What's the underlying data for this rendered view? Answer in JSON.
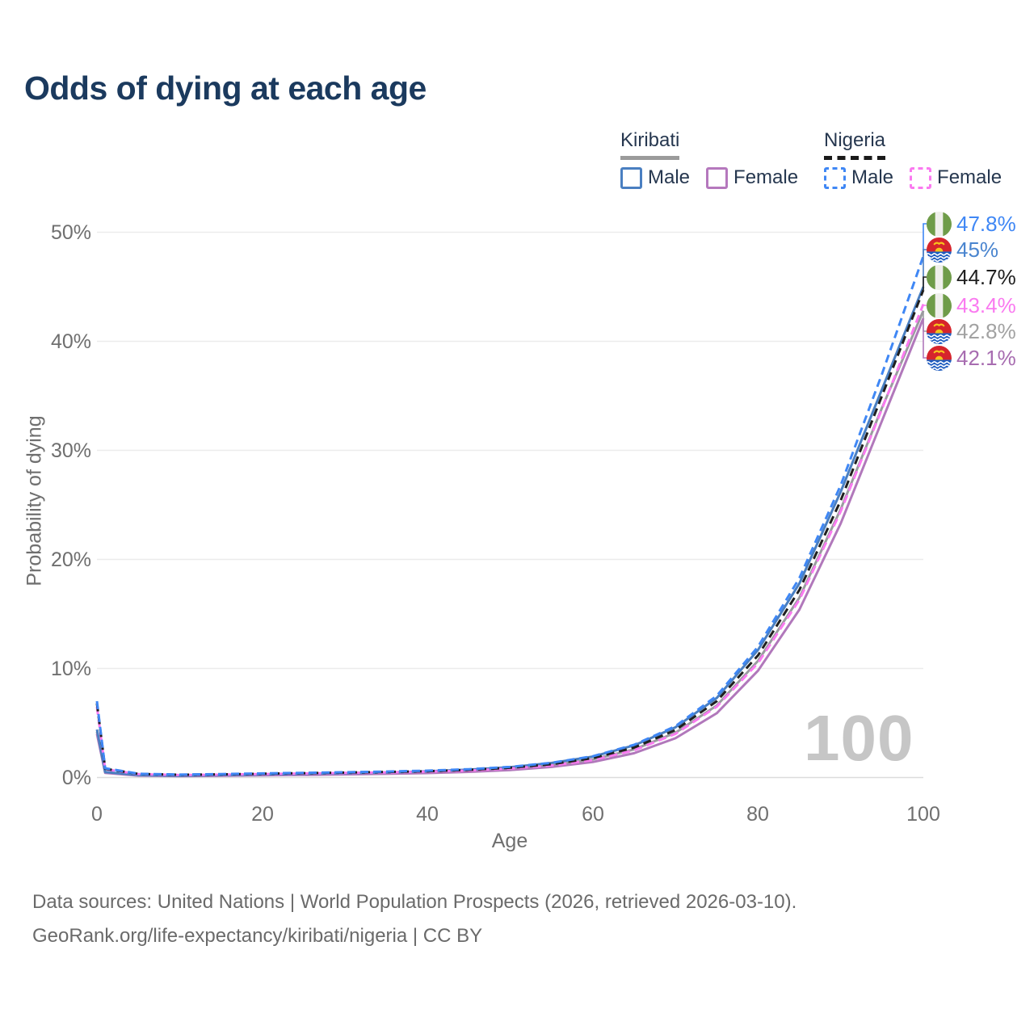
{
  "title": "Odds of dying at each age",
  "watermark_age": "100",
  "legend": {
    "groups": [
      {
        "country": "Kiribati",
        "underline_style": "solid",
        "underline_color": "#9b9b9b",
        "items": [
          {
            "label": "Male",
            "color": "#4a7fc1",
            "box_style": "solid"
          },
          {
            "label": "Female",
            "color": "#b578bd",
            "box_style": "solid"
          }
        ]
      },
      {
        "country": "Nigeria",
        "underline_style": "dashed",
        "underline_color": "#1a1a1a",
        "items": [
          {
            "label": "Male",
            "color": "#3f87f5",
            "box_style": "dashed"
          },
          {
            "label": "Female",
            "color": "#fa7af0",
            "box_style": "dashed"
          }
        ]
      }
    ]
  },
  "chart_data": {
    "type": "line",
    "title": "Odds of dying at each age",
    "xlabel": "Age",
    "ylabel": "Probability of dying",
    "xlim": [
      0,
      100
    ],
    "ylim_percent": [
      0,
      50
    ],
    "x_ticks": [
      0,
      20,
      40,
      60,
      80,
      100
    ],
    "y_tick_labels": [
      "0%",
      "10%",
      "20%",
      "30%",
      "40%",
      "50%"
    ],
    "grid": "horizontal",
    "ages": [
      0,
      1,
      5,
      10,
      15,
      20,
      25,
      30,
      35,
      40,
      45,
      50,
      55,
      60,
      65,
      70,
      75,
      80,
      85,
      90,
      95,
      100
    ],
    "series": [
      {
        "name": "kiribati-both",
        "country": "kiribati",
        "sex": "both",
        "line": "solid",
        "color": "#9b9ba0",
        "label_color": "#a2a2a2",
        "end_label": "42.8%",
        "values": [
          4.2,
          0.46,
          0.2,
          0.15,
          0.19,
          0.24,
          0.29,
          0.34,
          0.4,
          0.48,
          0.61,
          0.81,
          1.13,
          1.66,
          2.58,
          4.1,
          6.6,
          10.7,
          16.5,
          24.6,
          33.9,
          42.8
        ]
      },
      {
        "name": "kiribati-female",
        "country": "kiribati",
        "sex": "female",
        "line": "solid",
        "color": "#b178bb",
        "label_color": "#a76cb0",
        "end_label": "42.1%",
        "values": [
          4.0,
          0.42,
          0.18,
          0.13,
          0.16,
          0.2,
          0.24,
          0.29,
          0.34,
          0.41,
          0.52,
          0.69,
          0.97,
          1.42,
          2.23,
          3.6,
          5.9,
          9.8,
          15.4,
          23.3,
          32.7,
          42.1
        ]
      },
      {
        "name": "kiribati-male",
        "country": "kiribati",
        "sex": "male",
        "line": "solid",
        "color": "#4a7fc1",
        "label_color": "#4a85cf",
        "end_label": "45%",
        "values": [
          4.4,
          0.5,
          0.22,
          0.17,
          0.22,
          0.28,
          0.34,
          0.4,
          0.47,
          0.57,
          0.72,
          0.95,
          1.33,
          1.92,
          2.95,
          4.6,
          7.3,
          11.7,
          17.8,
          26.2,
          35.6,
          45.0
        ]
      },
      {
        "name": "nigeria-female",
        "country": "nigeria",
        "sex": "female",
        "line": "dashed",
        "color": "#fa7af0",
        "label_color": "#fa7af0",
        "end_label": "43.4%",
        "values": [
          6.5,
          0.76,
          0.31,
          0.23,
          0.27,
          0.32,
          0.37,
          0.42,
          0.47,
          0.54,
          0.64,
          0.82,
          1.1,
          1.6,
          2.5,
          4.0,
          6.5,
          10.5,
          16.3,
          24.4,
          33.8,
          43.4
        ]
      },
      {
        "name": "nigeria-both",
        "country": "nigeria",
        "sex": "both",
        "line": "dashed",
        "color": "#1f1f1f",
        "label_color": "#1f1f1f",
        "end_label": "44.7%",
        "values": [
          6.8,
          0.8,
          0.33,
          0.25,
          0.29,
          0.35,
          0.4,
          0.45,
          0.51,
          0.58,
          0.7,
          0.9,
          1.22,
          1.78,
          2.75,
          4.35,
          7.0,
          11.2,
          17.2,
          25.4,
          35.0,
          44.7
        ]
      },
      {
        "name": "nigeria-male",
        "country": "nigeria",
        "sex": "male",
        "line": "dashed",
        "color": "#3f87f5",
        "label_color": "#3f87f5",
        "end_label": "47.8%",
        "values": [
          7.0,
          0.85,
          0.35,
          0.27,
          0.32,
          0.38,
          0.43,
          0.48,
          0.55,
          0.63,
          0.76,
          0.98,
          1.35,
          1.95,
          3.0,
          4.7,
          7.5,
          12.0,
          18.3,
          26.8,
          37.0,
          47.8
        ]
      }
    ],
    "flag_colors": {
      "nigeria_green": "#6f9c49",
      "nigeria_white": "#efefeb",
      "kiribati_red": "#d6242c",
      "kiribati_blue": "#1d5bbf",
      "kiribati_yellow": "#f6c31c"
    }
  },
  "footer": {
    "line1": "Data sources: United Nations | World Population Prospects (2026, retrieved 2026-03-10).",
    "line2": "GeoRank.org/life-expectancy/kiribati/nigeria | CC BY"
  }
}
